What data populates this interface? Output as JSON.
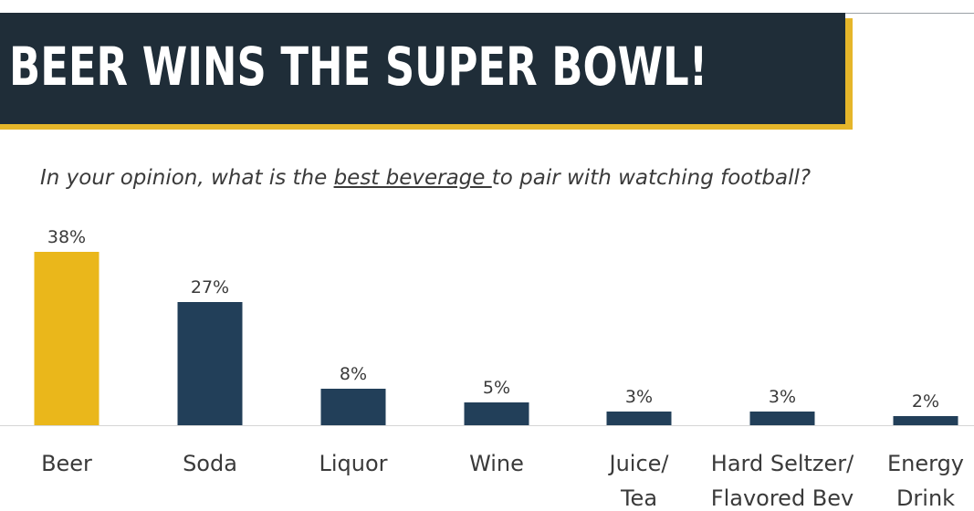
{
  "title": "BEER WINS THE SUPER BOWL!",
  "question": {
    "before": "In your opinion, what is the ",
    "underlined": "best beverage ",
    "after": "to pair with watching football?"
  },
  "colors": {
    "highlight": "#eab71b",
    "bar": "#223f59",
    "banner": "#1f2d38",
    "banner_accent": "#e5b62a"
  },
  "chart_data": {
    "type": "bar",
    "categories": [
      [
        "Beer"
      ],
      [
        "Soda"
      ],
      [
        "Liquor"
      ],
      [
        "Wine"
      ],
      [
        "Juice/",
        "Tea"
      ],
      [
        "Hard Seltzer/",
        "Flavored Bev"
      ],
      [
        "Energy",
        "Drink"
      ]
    ],
    "values": [
      38,
      27,
      8,
      5,
      3,
      3,
      2
    ],
    "value_labels": [
      "38%",
      "27%",
      "8%",
      "5%",
      "3%",
      "3%",
      "2%"
    ],
    "highlight_index": 0,
    "ylim": [
      0,
      40
    ],
    "grid": false,
    "legend": "none"
  }
}
